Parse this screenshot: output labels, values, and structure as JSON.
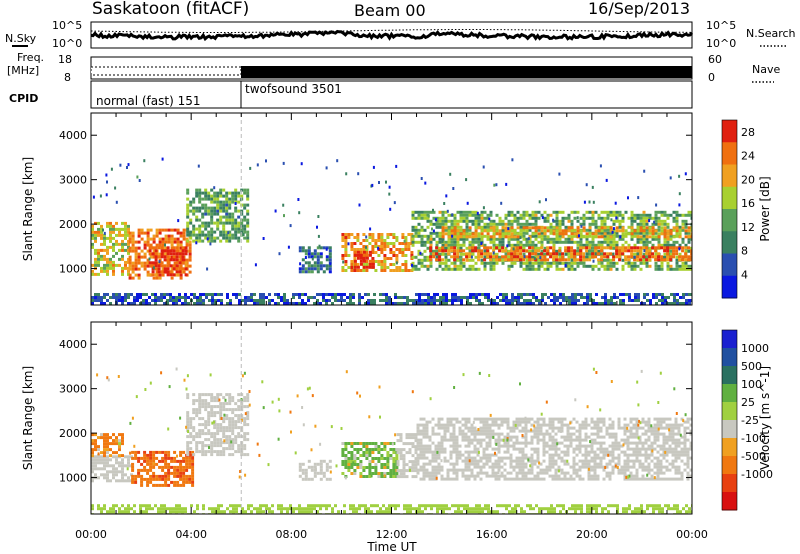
{
  "header": {
    "station": "Saskatoon (fitACF)",
    "beam": "Beam 00",
    "date": "16/Sep/2013"
  },
  "status_panel": {
    "nsky_label": "N.Sky",
    "nsearch_label": "N.Search",
    "freq_label_line1": "Freq.",
    "freq_label_line2": "[MHz]",
    "nave_label": "Nave",
    "cpid_label": "CPID",
    "noise_ticks": [
      "10^5",
      "10^0"
    ],
    "freq_ticks": [
      "18",
      "8"
    ],
    "nave_ticks": [
      "60",
      "0"
    ],
    "cpid_segments": [
      {
        "label": "normal (fast) 151",
        "start_hour": 0,
        "end_hour": 6
      },
      {
        "label": "twofsound 3501",
        "start_hour": 6,
        "end_hour": 24
      }
    ]
  },
  "colors": {
    "power_scale": [
      "#0a18e0",
      "#2a4fb0",
      "#3a8060",
      "#5aa05a",
      "#a8d030",
      "#f0a020",
      "#f07010",
      "#e02010"
    ],
    "velocity_scale": [
      "#d81010",
      "#e84010",
      "#f07810",
      "#f0a020",
      "#c8c8c0",
      "#a0d040",
      "#60b040",
      "#2a7060",
      "#2050a0",
      "#1a20d0"
    ]
  },
  "chart_data": [
    {
      "type": "heatmap",
      "title": "Power",
      "ylabel": "Slant Range [km]",
      "xlabel": "Time UT",
      "x_ticks": [
        "00:00",
        "04:00",
        "08:00",
        "12:00",
        "16:00",
        "20:00",
        "00:00"
      ],
      "y_ticks": [
        1000,
        2000,
        3000,
        4000
      ],
      "xlim": [
        0,
        24
      ],
      "ylim": [
        180,
        4500
      ],
      "colorbar_label": "Power [dB]",
      "colorbar_ticks": [
        4,
        8,
        12,
        16,
        20,
        24,
        28
      ],
      "colorbar_range": [
        0,
        30
      ],
      "regions": [
        {
          "t": [
            0.0,
            1.5
          ],
          "r": [
            900,
            2050
          ],
          "level": 18
        },
        {
          "t": [
            1.5,
            4.0
          ],
          "r": [
            800,
            1900
          ],
          "level": 24
        },
        {
          "t": [
            2.3,
            3.8
          ],
          "r": [
            850,
            1500
          ],
          "level": 27
        },
        {
          "t": [
            3.8,
            6.3
          ],
          "r": [
            1600,
            2800
          ],
          "level": 12
        },
        {
          "t": [
            8.3,
            9.6
          ],
          "r": [
            950,
            1500
          ],
          "level": 8
        },
        {
          "t": [
            10.0,
            12.8
          ],
          "r": [
            950,
            1800
          ],
          "level": 22
        },
        {
          "t": [
            10.5,
            11.3
          ],
          "r": [
            1000,
            1400
          ],
          "level": 28
        },
        {
          "t": [
            12.8,
            24.0
          ],
          "r": [
            1000,
            2300
          ],
          "level": 14
        },
        {
          "t": [
            13.5,
            24.0
          ],
          "r": [
            1200,
            1500
          ],
          "level": 24
        },
        {
          "t": [
            14.0,
            24.0
          ],
          "r": [
            1700,
            1950
          ],
          "level": 20
        },
        {
          "t": [
            0.0,
            24.0
          ],
          "r": [
            180,
            450
          ],
          "level": 6
        }
      ]
    },
    {
      "type": "heatmap",
      "title": "Velocity",
      "ylabel": "Slant Range [km]",
      "xlabel": "Time UT",
      "x_ticks": [
        "00:00",
        "04:00",
        "08:00",
        "12:00",
        "16:00",
        "20:00",
        "00:00"
      ],
      "y_ticks": [
        1000,
        2000,
        3000,
        4000
      ],
      "xlim": [
        0,
        24
      ],
      "ylim": [
        180,
        4500
      ],
      "colorbar_label": "Velocity [m s^-1]",
      "colorbar_ticks": [
        1000,
        500,
        100,
        25,
        -25,
        -100,
        -500,
        -1000
      ],
      "regions": [
        {
          "t": [
            0.0,
            1.6
          ],
          "r": [
            950,
            1500
          ],
          "level": 0
        },
        {
          "t": [
            0.0,
            1.2
          ],
          "r": [
            1500,
            2000
          ],
          "level": -150
        },
        {
          "t": [
            1.6,
            4.0
          ],
          "r": [
            800,
            1600
          ],
          "level": -400
        },
        {
          "t": [
            3.8,
            6.3
          ],
          "r": [
            1500,
            2900
          ],
          "level": 0
        },
        {
          "t": [
            8.3,
            9.6
          ],
          "r": [
            950,
            1400
          ],
          "level": 0
        },
        {
          "t": [
            10.0,
            12.2
          ],
          "r": [
            1000,
            1800
          ],
          "level": 150
        },
        {
          "t": [
            12.2,
            13.0
          ],
          "r": [
            1000,
            2000
          ],
          "level": 0
        },
        {
          "t": [
            13.0,
            24.0
          ],
          "r": [
            950,
            2350
          ],
          "level": 0
        },
        {
          "t": [
            0.0,
            24.0
          ],
          "r": [
            180,
            400
          ],
          "level": 60
        }
      ]
    }
  ]
}
